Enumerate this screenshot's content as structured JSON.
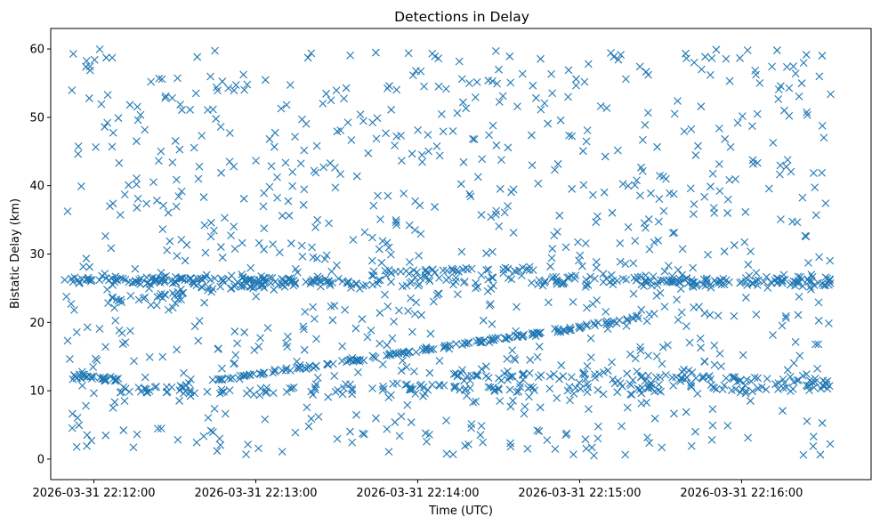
{
  "chart_data": {
    "type": "scatter",
    "title": "Detections in Delay",
    "xlabel": "Time (UTC)",
    "ylabel": "Bistatic Delay (km)",
    "marker": "x",
    "color": "#1f77b4",
    "xlim": [
      "2026-03-31 22:11:44",
      "2026-03-31 22:16:48"
    ],
    "ylim": [
      -3,
      63
    ],
    "x_ticks": [
      "2026-03-31 22:12:00",
      "2026-03-31 22:13:00",
      "2026-03-31 22:14:00",
      "2026-03-31 22:15:00",
      "2026-03-31 22:16:00"
    ],
    "y_ticks": [
      0,
      10,
      20,
      30,
      40,
      50,
      60
    ],
    "grid": false,
    "series": [
      {
        "values_description": "Scattered detections; x = time in seconds after 22:11:44 UTC, y = bistatic delay (km). Generated structure: noise clutter plus tracks.",
        "tracks": [
          {
            "t0": 0,
            "t1": 110,
            "y0": 26.3,
            "y1": 26.0,
            "n": 90,
            "jitter": 0.6
          },
          {
            "t0": 0,
            "t1": 300,
            "y0": 26.0,
            "y1": 26.2,
            "n": 220,
            "jitter": 1.2
          },
          {
            "t0": 0,
            "t1": 25,
            "y0": 12.3,
            "y1": 11.6,
            "n": 35,
            "jitter": 0.6
          },
          {
            "t0": 18,
            "t1": 80,
            "y0": 23.0,
            "y1": 25.5,
            "n": 40,
            "jitter": 0.6
          },
          {
            "t0": 55,
            "t1": 200,
            "y0": 11.2,
            "y1": 19.5,
            "n": 150,
            "jitter": 0.35
          },
          {
            "t0": 200,
            "t1": 226,
            "y0": 19.6,
            "y1": 21.5,
            "n": 20,
            "jitter": 0.4
          },
          {
            "t0": 25,
            "t1": 300,
            "y0": 10.0,
            "y1": 10.6,
            "n": 170,
            "jitter": 1.0
          },
          {
            "t0": 150,
            "t1": 300,
            "y0": 12.3,
            "y1": 11.5,
            "n": 90,
            "jitter": 0.8
          },
          {
            "t0": 220,
            "t1": 300,
            "y0": 25.8,
            "y1": 25.6,
            "n": 70,
            "jitter": 0.7
          },
          {
            "t0": 120,
            "t1": 180,
            "y0": 27.4,
            "y1": 27.8,
            "n": 40,
            "jitter": 0.5
          }
        ],
        "clutter": {
          "n": 900,
          "t_range": [
            0,
            300
          ],
          "y_range": [
            0.5,
            60
          ]
        }
      }
    ]
  }
}
